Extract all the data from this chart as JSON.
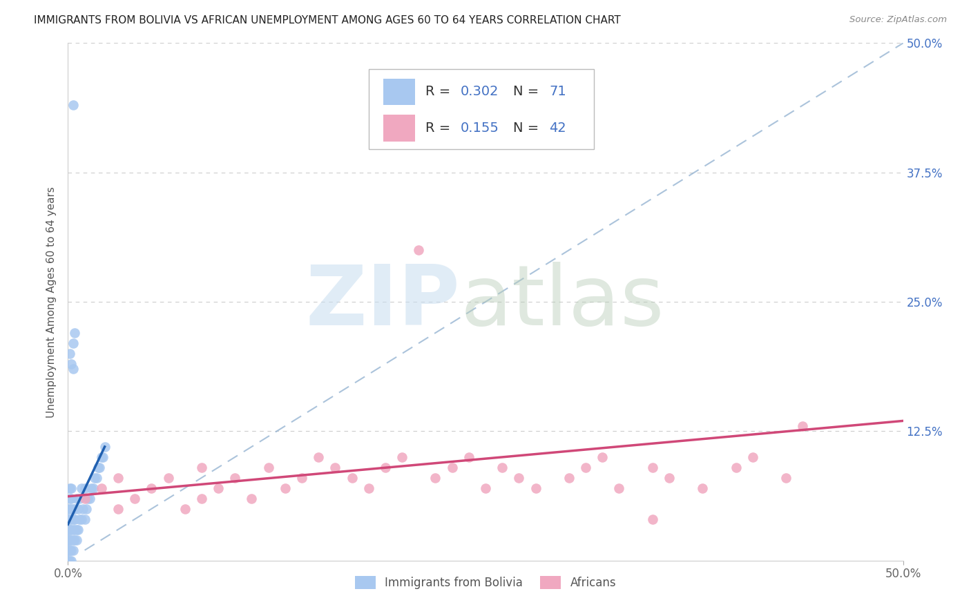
{
  "title": "IMMIGRANTS FROM BOLIVIA VS AFRICAN UNEMPLOYMENT AMONG AGES 60 TO 64 YEARS CORRELATION CHART",
  "source": "Source: ZipAtlas.com",
  "ylabel": "Unemployment Among Ages 60 to 64 years",
  "legend_label1": "Immigrants from Bolivia",
  "legend_label2": "Africans",
  "r1": "0.302",
  "n1": "71",
  "r2": "0.155",
  "n2": "42",
  "color1": "#a8c8f0",
  "color1_line": "#2060b0",
  "color2": "#f0a8c0",
  "color2_line": "#d04878",
  "xmin": 0.0,
  "xmax": 0.5,
  "ymin": 0.0,
  "ymax": 0.5,
  "ytick_vals": [
    0.0,
    0.125,
    0.25,
    0.375,
    0.5
  ],
  "ytick_labels_right": [
    "",
    "12.5%",
    "25.0%",
    "37.5%",
    "50.0%"
  ],
  "xtick_vals": [
    0.0,
    0.5
  ],
  "xtick_labels": [
    "0.0%",
    "50.0%"
  ],
  "bolivia_x": [
    0.0,
    0.0,
    0.0,
    0.0,
    0.0,
    0.0,
    0.0,
    0.0,
    0.0,
    0.0,
    0.0,
    0.0,
    0.0,
    0.001,
    0.001,
    0.001,
    0.001,
    0.001,
    0.001,
    0.001,
    0.001,
    0.001,
    0.001,
    0.001,
    0.002,
    0.002,
    0.002,
    0.002,
    0.002,
    0.002,
    0.002,
    0.002,
    0.003,
    0.003,
    0.003,
    0.003,
    0.003,
    0.004,
    0.004,
    0.004,
    0.004,
    0.005,
    0.005,
    0.005,
    0.006,
    0.006,
    0.007,
    0.007,
    0.008,
    0.008,
    0.009,
    0.01,
    0.01,
    0.011,
    0.012,
    0.013,
    0.014,
    0.015,
    0.016,
    0.017,
    0.018,
    0.019,
    0.02,
    0.021,
    0.022,
    0.001,
    0.002,
    0.003,
    0.004,
    0.003,
    0.003
  ],
  "bolivia_y": [
    0.0,
    0.0,
    0.0,
    0.01,
    0.01,
    0.02,
    0.02,
    0.02,
    0.03,
    0.03,
    0.04,
    0.04,
    0.05,
    0.0,
    0.01,
    0.01,
    0.02,
    0.02,
    0.03,
    0.03,
    0.04,
    0.05,
    0.06,
    0.07,
    0.0,
    0.01,
    0.02,
    0.03,
    0.04,
    0.05,
    0.06,
    0.07,
    0.01,
    0.02,
    0.03,
    0.04,
    0.05,
    0.02,
    0.03,
    0.04,
    0.05,
    0.02,
    0.03,
    0.06,
    0.03,
    0.05,
    0.04,
    0.06,
    0.04,
    0.07,
    0.05,
    0.04,
    0.07,
    0.05,
    0.06,
    0.06,
    0.07,
    0.07,
    0.08,
    0.08,
    0.09,
    0.09,
    0.1,
    0.1,
    0.11,
    0.2,
    0.19,
    0.21,
    0.22,
    0.44,
    0.185
  ],
  "africans_x": [
    0.01,
    0.02,
    0.03,
    0.03,
    0.04,
    0.05,
    0.06,
    0.07,
    0.08,
    0.08,
    0.09,
    0.1,
    0.11,
    0.12,
    0.13,
    0.14,
    0.15,
    0.16,
    0.17,
    0.18,
    0.19,
    0.2,
    0.21,
    0.22,
    0.23,
    0.24,
    0.25,
    0.26,
    0.27,
    0.28,
    0.3,
    0.31,
    0.32,
    0.33,
    0.35,
    0.36,
    0.38,
    0.4,
    0.41,
    0.43,
    0.44,
    0.35
  ],
  "africans_y": [
    0.06,
    0.07,
    0.05,
    0.08,
    0.06,
    0.07,
    0.08,
    0.05,
    0.06,
    0.09,
    0.07,
    0.08,
    0.06,
    0.09,
    0.07,
    0.08,
    0.1,
    0.09,
    0.08,
    0.07,
    0.09,
    0.1,
    0.3,
    0.08,
    0.09,
    0.1,
    0.07,
    0.09,
    0.08,
    0.07,
    0.08,
    0.09,
    0.1,
    0.07,
    0.09,
    0.08,
    0.07,
    0.09,
    0.1,
    0.08,
    0.13,
    0.04
  ],
  "bolivia_line_x": [
    0.0,
    0.022
  ],
  "bolivia_line_y": [
    0.035,
    0.11
  ],
  "african_line_x": [
    0.0,
    0.5
  ],
  "african_line_y": [
    0.062,
    0.135
  ],
  "dash_line_x": [
    0.01,
    0.5
  ],
  "dash_line_y": [
    0.01,
    0.5
  ]
}
